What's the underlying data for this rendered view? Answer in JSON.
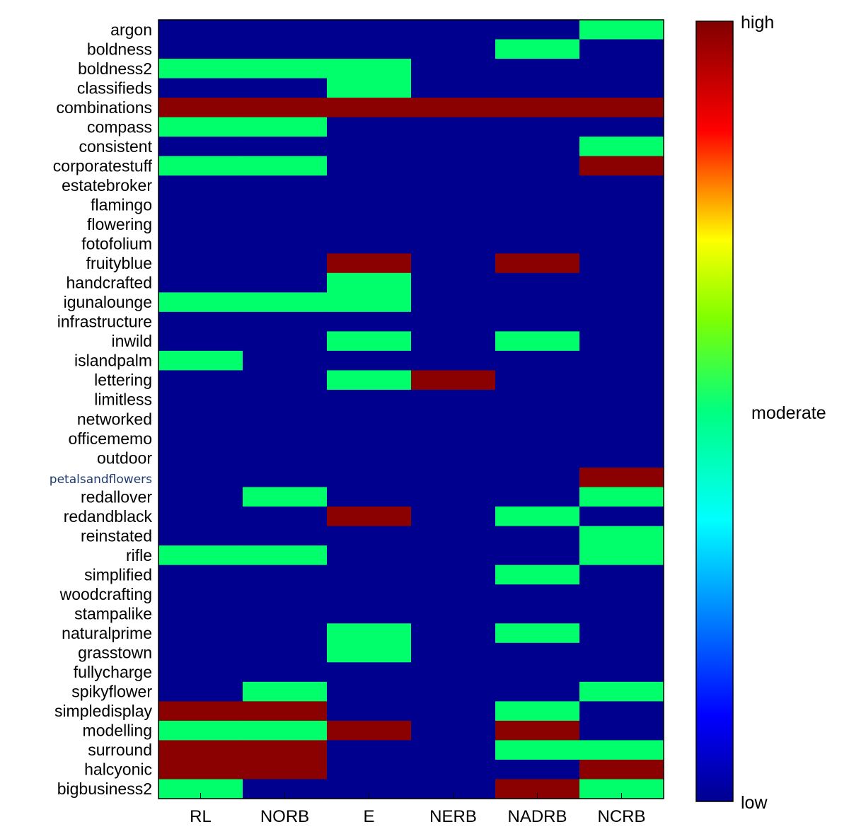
{
  "chart_data": {
    "type": "heatmap",
    "title": "",
    "xlabel": "",
    "ylabel": "",
    "columns": [
      "RL",
      "NORB",
      "E",
      "NERB",
      "NADRB",
      "NCRB"
    ],
    "rows": [
      "argon",
      "boldness",
      "boldness2",
      "classifieds",
      "combinations",
      "compass",
      "consistent",
      "corporatestuff",
      "estatebroker",
      "flamingo",
      "flowering",
      "fotofolium",
      "fruityblue",
      "handcrafted",
      "igunalounge",
      "infrastructure",
      "inwild",
      "islandpalm",
      "lettering",
      "limitless",
      "networked",
      "officememo",
      "outdoor",
      "petalsandflowers",
      "redallover",
      "redandblack",
      "reinstated",
      "rifle",
      "simplified",
      "woodcrafting",
      "stampalike",
      "naturalprime",
      "grasstown",
      "fullycharge",
      "spikyflower",
      "simpledisplay",
      "modelling",
      "surround",
      "halcyonic",
      "bigbusiness2"
    ],
    "level_scale": {
      "low": 0,
      "moderate": 1,
      "high": 2
    },
    "values": [
      [
        0,
        0,
        0,
        0,
        0,
        1
      ],
      [
        0,
        0,
        0,
        0,
        1,
        0
      ],
      [
        1,
        1,
        1,
        0,
        0,
        0
      ],
      [
        0,
        0,
        1,
        0,
        0,
        0
      ],
      [
        2,
        2,
        2,
        2,
        2,
        2
      ],
      [
        1,
        1,
        0,
        0,
        0,
        0
      ],
      [
        0,
        0,
        0,
        0,
        0,
        1
      ],
      [
        1,
        1,
        0,
        0,
        0,
        2
      ],
      [
        0,
        0,
        0,
        0,
        0,
        0
      ],
      [
        0,
        0,
        0,
        0,
        0,
        0
      ],
      [
        0,
        0,
        0,
        0,
        0,
        0
      ],
      [
        0,
        0,
        0,
        0,
        0,
        0
      ],
      [
        0,
        0,
        2,
        0,
        2,
        0
      ],
      [
        0,
        0,
        1,
        0,
        0,
        0
      ],
      [
        1,
        1,
        1,
        0,
        0,
        0
      ],
      [
        0,
        0,
        0,
        0,
        0,
        0
      ],
      [
        0,
        0,
        1,
        0,
        1,
        0
      ],
      [
        1,
        0,
        0,
        0,
        0,
        0
      ],
      [
        0,
        0,
        1,
        2,
        0,
        0
      ],
      [
        0,
        0,
        0,
        0,
        0,
        0
      ],
      [
        0,
        0,
        0,
        0,
        0,
        0
      ],
      [
        0,
        0,
        0,
        0,
        0,
        0
      ],
      [
        0,
        0,
        0,
        0,
        0,
        0
      ],
      [
        0,
        0,
        0,
        0,
        0,
        2
      ],
      [
        0,
        1,
        0,
        0,
        0,
        1
      ],
      [
        0,
        0,
        2,
        0,
        1,
        0
      ],
      [
        0,
        0,
        0,
        0,
        0,
        1
      ],
      [
        1,
        1,
        0,
        0,
        0,
        1
      ],
      [
        0,
        0,
        0,
        0,
        1,
        0
      ],
      [
        0,
        0,
        0,
        0,
        0,
        0
      ],
      [
        0,
        0,
        0,
        0,
        0,
        0
      ],
      [
        0,
        0,
        1,
        0,
        1,
        0
      ],
      [
        0,
        0,
        1,
        0,
        0,
        0
      ],
      [
        0,
        0,
        0,
        0,
        0,
        0
      ],
      [
        0,
        1,
        0,
        0,
        0,
        1
      ],
      [
        2,
        2,
        0,
        0,
        1,
        0
      ],
      [
        1,
        1,
        2,
        0,
        2,
        0
      ],
      [
        2,
        2,
        0,
        0,
        1,
        1
      ],
      [
        2,
        2,
        0,
        0,
        0,
        2
      ],
      [
        1,
        0,
        0,
        0,
        2,
        1
      ]
    ],
    "colorbar": {
      "labels": {
        "high": "high",
        "moderate": "moderate",
        "low": "low"
      },
      "colormap": "jet"
    },
    "colors": {
      "low": "#00008f",
      "moderate": "#00ff6a",
      "high": "#8b0000"
    }
  }
}
